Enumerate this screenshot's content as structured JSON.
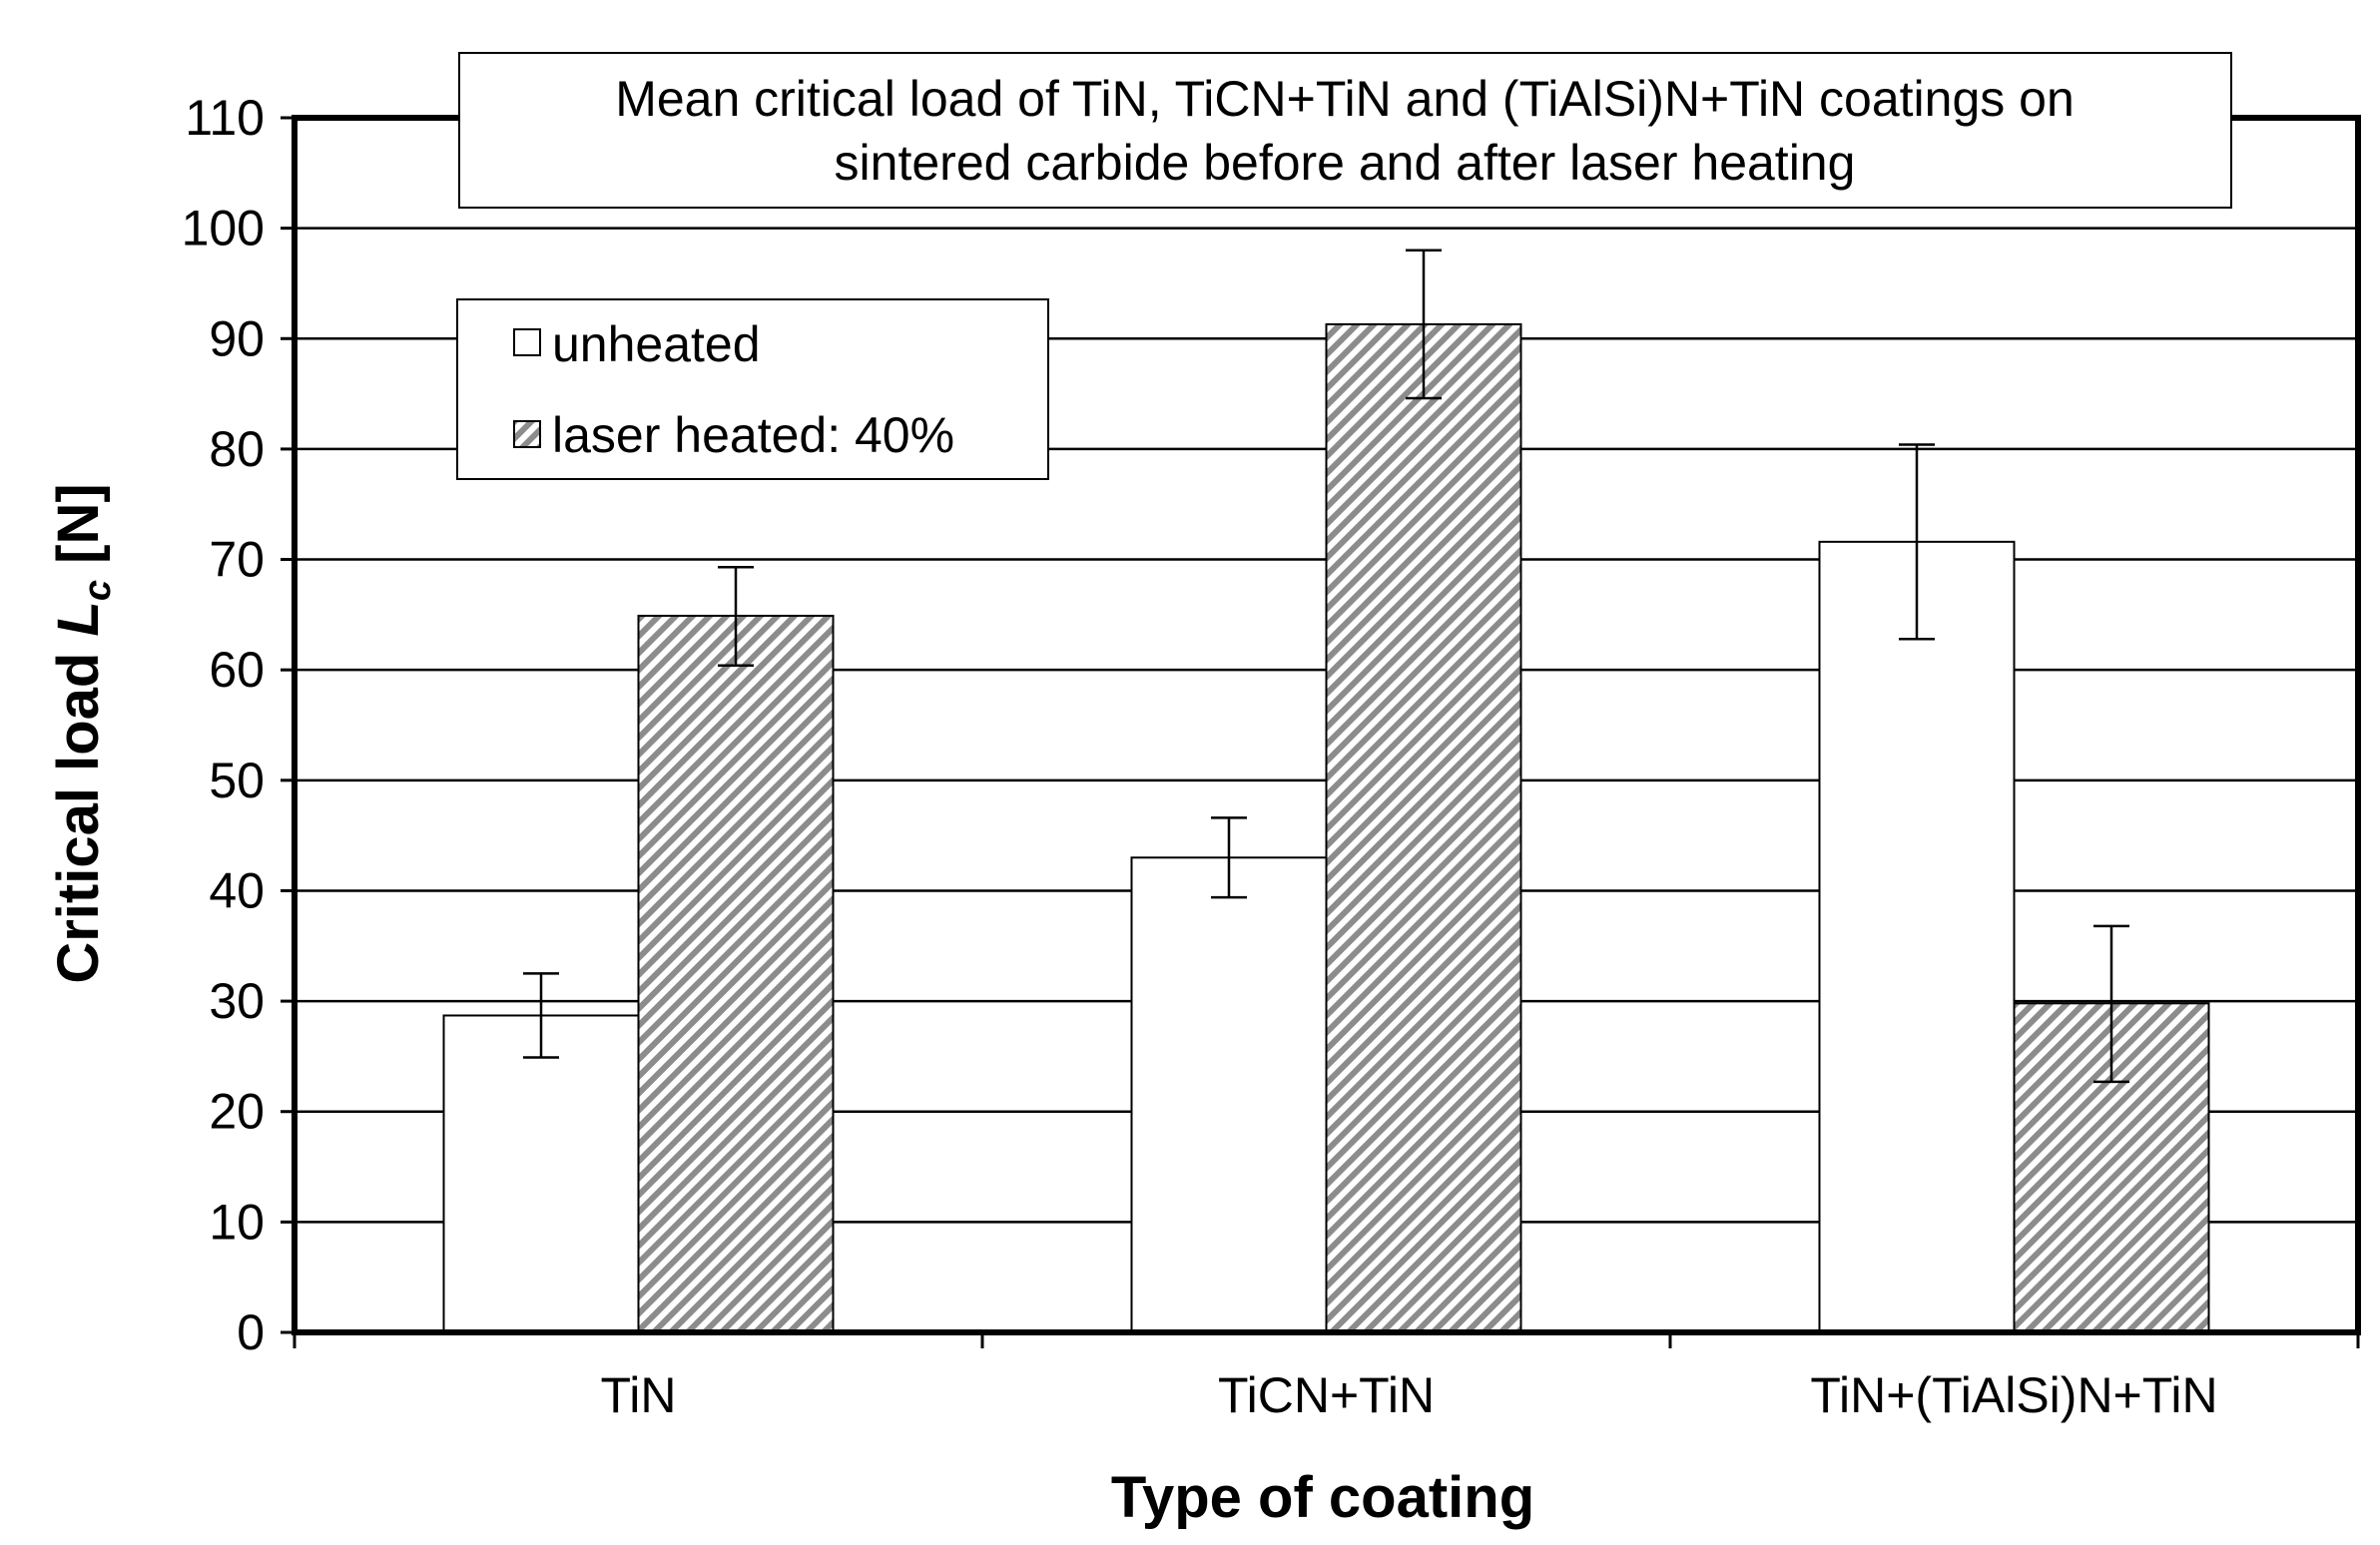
{
  "chart_data": {
    "type": "bar",
    "title_lines": [
      "Mean critical load of TiN, TiCN+TiN and (TiAlSi)N+TiN coatings on",
      "sintered carbide before and after laser heating"
    ],
    "xlabel": "Type of coating",
    "ylabel_main": "Critical load ",
    "ylabel_symbol": "L",
    "ylabel_sub": "c",
    "ylabel_unit": " [N]",
    "categories": [
      "TiN",
      "TiCN+TiN",
      "TiN+(TiAlSi)N+TiN"
    ],
    "ylim": [
      0,
      110
    ],
    "yticks": [
      0,
      10,
      20,
      30,
      40,
      50,
      60,
      70,
      80,
      90,
      100,
      110
    ],
    "grid": true,
    "legend_position": "top-left",
    "series": [
      {
        "name": "unheated",
        "fill": "white",
        "values": [
          28.7,
          43.0,
          71.6
        ],
        "err_low": [
          24.9,
          39.4,
          62.8
        ],
        "err_high": [
          32.5,
          46.6,
          80.4
        ]
      },
      {
        "name": "laser heated: 40%",
        "fill": "hatched",
        "values": [
          64.9,
          91.3,
          29.8
        ],
        "err_low": [
          60.4,
          84.6,
          22.7
        ],
        "err_high": [
          69.3,
          98.0,
          36.8
        ]
      }
    ],
    "colors": {
      "axis": "#000000",
      "grid": "#000000",
      "hatch_dark": "#8c8c8c",
      "hatch_light": "#ffffff"
    }
  }
}
